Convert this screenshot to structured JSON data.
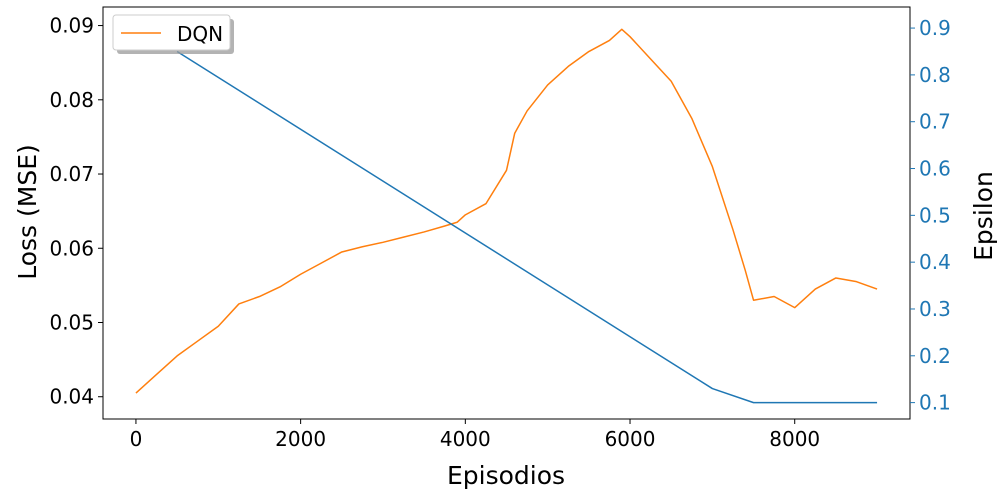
{
  "chart_data": {
    "type": "line",
    "xlabel": "Episodios",
    "ylabel_left": "Loss (MSE)",
    "ylabel_right": "Epsilon",
    "xlim": [
      -400,
      9400
    ],
    "ylim_left": [
      0.037,
      0.0925
    ],
    "ylim_right": [
      0.065,
      0.945
    ],
    "x_ticks": [
      0,
      2000,
      4000,
      6000,
      8000
    ],
    "x_tick_labels": [
      "0",
      "2000",
      "4000",
      "6000",
      "8000"
    ],
    "y_left_ticks": [
      0.04,
      0.05,
      0.06,
      0.07,
      0.08,
      0.09
    ],
    "y_left_tick_labels": [
      "0.04",
      "0.05",
      "0.06",
      "0.07",
      "0.08",
      "0.09"
    ],
    "y_right_ticks": [
      0.1,
      0.2,
      0.3,
      0.4,
      0.5,
      0.6,
      0.7,
      0.8,
      0.9
    ],
    "y_right_tick_labels": [
      "0.1",
      "0.2",
      "0.3",
      "0.4",
      "0.5",
      "0.6",
      "0.7",
      "0.8",
      "0.9"
    ],
    "grid": false,
    "legend": {
      "placement": "top-left",
      "entries": [
        "DQN"
      ]
    },
    "series": [
      {
        "name": "DQN",
        "axis": "left",
        "color": "#ff7f0e",
        "x": [
          0,
          250,
          500,
          750,
          1000,
          1250,
          1500,
          1750,
          2000,
          2250,
          2500,
          2750,
          3000,
          3250,
          3500,
          3750,
          3900,
          4000,
          4250,
          4500,
          4600,
          4750,
          5000,
          5250,
          5500,
          5750,
          5900,
          6000,
          6250,
          6500,
          6750,
          7000,
          7250,
          7400,
          7500,
          7750,
          8000,
          8250,
          8500,
          8750,
          9000
        ],
        "y": [
          0.0405,
          0.043,
          0.0455,
          0.0475,
          0.0495,
          0.0525,
          0.0535,
          0.0548,
          0.0565,
          0.058,
          0.0595,
          0.0602,
          0.0608,
          0.0615,
          0.0622,
          0.063,
          0.0635,
          0.0645,
          0.066,
          0.0705,
          0.0755,
          0.0785,
          0.082,
          0.0845,
          0.0865,
          0.088,
          0.0895,
          0.0885,
          0.0855,
          0.0825,
          0.0775,
          0.071,
          0.0625,
          0.057,
          0.053,
          0.0535,
          0.052,
          0.0545,
          0.056,
          0.0555,
          0.0545
        ]
      },
      {
        "name": "",
        "axis": "right",
        "color": "#1f77b4",
        "x": [
          500,
          7000,
          7500,
          9000
        ],
        "y": [
          0.85,
          0.13,
          0.1,
          0.1
        ]
      }
    ]
  },
  "colors": {
    "right_axis": "#1f77b4",
    "dqn": "#ff7f0e",
    "epsilon": "#1f77b4"
  }
}
